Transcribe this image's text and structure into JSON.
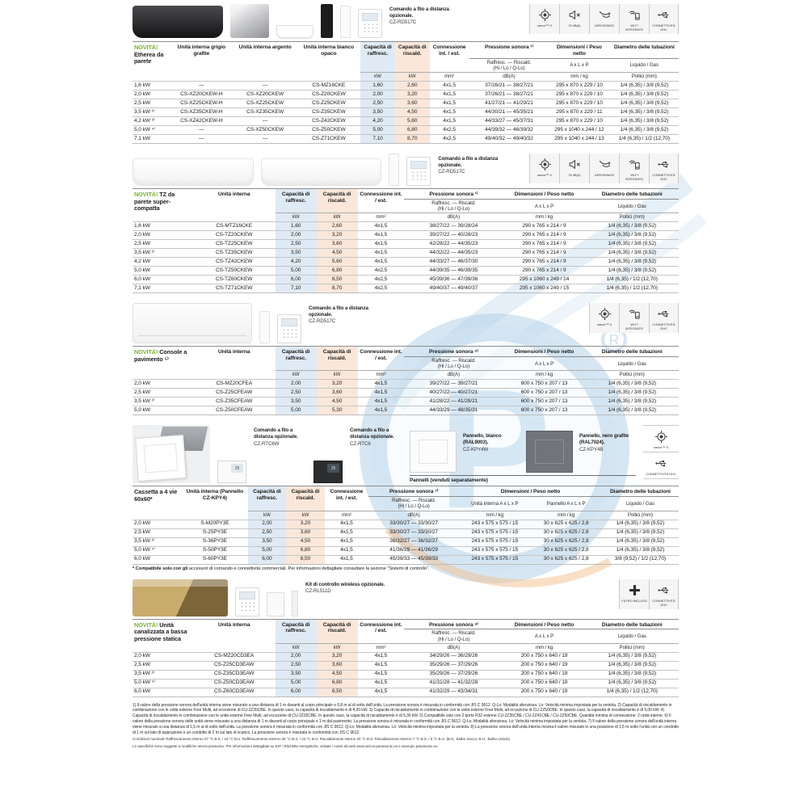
{
  "common": {
    "cool": "Capacità di raffresc.",
    "heat": "Capacità di riscald.",
    "conn": "Connessione int. / est.",
    "press_r1": "Raffresc. — Riscald.",
    "press_r2": "(Hi / Lo / Q-Lo)",
    "dim": "Dimensioni / Peso netto",
    "axlxp": "A x L x P",
    "diam": "Diametro delle tubazioni",
    "liq": "Liquido / Gas",
    "kw": "kW",
    "mm2": "mm²",
    "dba": "dB(A)",
    "mmkg": "mm / kg",
    "pollici": "Pollici (mm)"
  },
  "s1": {
    "accessory_title": "Comando a filo a distanza opzionale.",
    "accessory_model": "CZ-RD517C",
    "icons": [
      {
        "label": "nanoe™ X"
      },
      {
        "label": "23 dB(A)"
      },
      {
        "label": "AEROWINGS"
      },
      {
        "label": "WI-FI INTEGRATO"
      },
      {
        "label": "CONNETTIVITÀ DHC"
      }
    ],
    "novita": "NOVITÀ!",
    "title": "Etherea da parete",
    "col_grafite": "Unità interna grigio grafite",
    "col_argento": "Unità interna argento",
    "col_bianco": "Unità interna bianco opaco",
    "press": "Pressione sonora ¹⁾",
    "rows": [
      [
        "1,6 kW",
        "—",
        "—",
        "CS-MZ16CKE",
        "1,60",
        "2,60",
        "4x1,5",
        "37/26/21 — 38/27/21",
        "295 x 870 x 229 / 10",
        "1/4 (6,35) / 3/8 (9,52)"
      ],
      [
        "2,0 kW",
        "CS-XZ20CKEW-H",
        "CS-XZ20CKEW",
        "CS-Z20CKEW",
        "2,00",
        "3,20",
        "4x1,5",
        "37/26/21 — 38/27/21",
        "295 x 870 x 229 / 10",
        "1/4 (6,35) / 3/8 (9,52)"
      ],
      [
        "2,5 kW",
        "CS-XZ25CKEW-H",
        "CS-XZ25CKEW",
        "CS-Z25CKEW",
        "2,50",
        "3,60",
        "4x1,5",
        "41/27/21 — 41/29/21",
        "295 x 870 x 229 / 10",
        "1/4 (6,35) / 3/8 (9,52)"
      ],
      [
        "3,5 kW ²⁾",
        "CS-XZ35CKEW-H",
        "CS-XZ35CKEW",
        "CS-Z35CKEW",
        "3,50",
        "4,50",
        "4x1,5",
        "44/30/21 — 45/35/21",
        "295 x 870 x 229 / 11",
        "1/4 (6,35) / 3/8 (9,52)"
      ],
      [
        "4,2 kW ³⁾",
        "CS-XZ42CKEW-H",
        "—",
        "CS-Z42CKEW",
        "4,20",
        "5,60",
        "4x1,5",
        "44/33/27 — 45/37/31",
        "295 x 870 x 229 / 10",
        "1/4 (6,35) / 3/8 (9,52)"
      ],
      [
        "5,0 kW ⁴⁾",
        "—",
        "CS-XZ50CKEW",
        "CS-Z50CKEW",
        "5,00",
        "6,80",
        "4x2,5",
        "44/39/32 — 46/39/32",
        "295 x 1040 x 244 / 12",
        "1/4 (6,35) / 3/8 (9,52)"
      ],
      [
        "7,1 kW",
        "—",
        "—",
        "CS-Z71CKEW",
        "7,10",
        "8,70",
        "4x2,5",
        "49/40/32 — 49/40/32",
        "295 x 1040 x 244 / 13",
        "1/4 (6,35) / 1/2 (12,70)"
      ]
    ]
  },
  "s2": {
    "accessory_title": "Comando a filo a distanza opzionale.",
    "accessory_model": "CZ-RD517C",
    "icons": [
      {
        "label": "nanoe™ X"
      },
      {
        "label": "20 dB(A)"
      },
      {
        "label": "AEROWINGS"
      },
      {
        "label": "WI-FI INTEGRATO"
      },
      {
        "label": "CONNETTIVITÀ DHC"
      }
    ],
    "novita": "NOVITÀ!",
    "title": "TZ da parete super-compatta",
    "col_unit": "Unità interna",
    "press": "Pressione sonora ¹⁾",
    "rows": [
      [
        "1,6 kW",
        "CS-MTZ16CKE",
        "1,60",
        "2,60",
        "4x1,5",
        "38/27/22 — 39/28/24",
        "290 x 765 x 214 / 9",
        "1/4 (6,35) / 3/8 (9,52)"
      ],
      [
        "2,0 kW",
        "CS-TZ20CKEW",
        "2,00",
        "3,20",
        "4x1,5",
        "39/27/22 — 40/28/23",
        "290 x 765 x 214 / 9",
        "1/4 (6,35) / 3/8 (9,52)"
      ],
      [
        "2,5 kW",
        "CS-TZ25CKEW",
        "2,50",
        "3,60",
        "4x1,5",
        "42/28/22 — 44/35/23",
        "290 x 765 x 214 / 9",
        "1/4 (6,35) / 3/8 (9,52)"
      ],
      [
        "3,5 kW ²⁾",
        "CS-TZ35CKEW",
        "3,50",
        "4,50",
        "4x1,5",
        "44/32/22 — 44/35/23",
        "290 x 765 x 214 / 9",
        "1/4 (6,35) / 3/8 (9,52)"
      ],
      [
        "4,2 kW",
        "CS-TZ42CKEW",
        "4,20",
        "5,60",
        "4x1,5",
        "44/33/27 — 46/37/30",
        "290 x 765 x 214 / 9",
        "1/4 (6,35) / 3/8 (9,52)"
      ],
      [
        "5,0 kW",
        "CS-TZ50CKEW",
        "5,00",
        "6,80",
        "4x2,5",
        "44/39/35 — 46/39/35",
        "290 x 765 x 214 / 9",
        "1/4 (6,35) / 3/8 (9,52)"
      ],
      [
        "6,0 kW",
        "CS-TZ60CKEW",
        "6,00",
        "8,50",
        "4x2,5",
        "45/39/36 — 47/39/36",
        "295 x 1060 x 249 / 14",
        "1/4 (6,35) / 1/2 (12,70)"
      ],
      [
        "7,1 kW",
        "CS-TZ71CKEW",
        "7,10",
        "8,70",
        "4x2,5",
        "49/40/37 — 49/40/37",
        "295 x 1060 x 249 / 15",
        "1/4 (6,35) / 1/2 (12,70)"
      ]
    ]
  },
  "s3": {
    "accessory_title": "Comando a filo a distanza opzionale.",
    "accessory_model": "CZ-RD517C",
    "icons": [
      {
        "label": "nanoe™ X"
      },
      {
        "label": "WI-FI INTEGRATO"
      },
      {
        "label": "CONNETTIVITÀ DHC"
      }
    ],
    "novita": "NOVITÀ!",
    "title": "Console a pavimento ⁵⁾",
    "col_unit": "Unità interna",
    "press": "Pressione sonora ⁶⁾",
    "rows": [
      [
        "2,0 kW",
        "CS-MZ20CFEA",
        "2,00",
        "3,20",
        "4x1,5",
        "39/27/22 — 39/27/21",
        "600 x 750 x 207 / 13",
        "1/4 (6,35) / 3/8 (9,52)"
      ],
      [
        "2,5 kW",
        "CS-Z25CFEAW",
        "2,50",
        "3,60",
        "4x1,5",
        "40/27/22 — 40/27/21",
        "600 x 750 x 207 / 13",
        "1/4 (6,35) / 3/8 (9,52)"
      ],
      [
        "3,5 kW ²⁾",
        "CS-Z35CFEAW",
        "3,50",
        "4,50",
        "4x1,5",
        "41/28/22 — 41/28/21",
        "600 x 750 x 207 / 13",
        "1/4 (6,35) / 3/8 (9,52)"
      ],
      [
        "5,0 kW",
        "CS-Z50CFEAW",
        "5,00",
        "5,30",
        "4x1,5",
        "44/33/29 — 48/35/31",
        "600 x 750 x 207 / 13",
        "1/4 (6,35) / 3/8 (9,52)"
      ]
    ]
  },
  "s4": {
    "acc1_title": "Comando a filo a distanza opzionale.",
    "acc1_model": "CZ-RTC6W",
    "acc2_title": "Comando a filo a distanza opzionale.",
    "acc2_model": "CZ-RTC6",
    "acc3_title": "Pannello, bianco (RAL9003).",
    "acc3_model": "CZ-KPY4W",
    "acc4_title": "Pannello, nero grafite (RAL7024).",
    "acc4_model": "CZ-KPY4B",
    "panels_caption": "Pannelli (venduti separatamente)",
    "screen": "25",
    "icons": [
      {
        "label": "nanoe™ X"
      },
      {
        "label": "CONNETTIVITÀ DHC"
      }
    ],
    "novita": "",
    "title": "Cassetta a 4 vie 60x60*",
    "col_unit": "Unità interna (Pannello CZ-KPY4)",
    "press": "Pressione sonora ⁷⁾",
    "dim_int": "Unità interna A x L x P",
    "dim_pan": "Pannello A x L x P",
    "note_bold": "* Compatibile solo con gli",
    "note_rest": " accessori di comando e connettività commerciali. Per informazioni dettagliate consultare la sezione \"Sistemi di controllo\".",
    "rows": [
      [
        "2,0 kW",
        "S-M20PY3E",
        "2,00",
        "3,20",
        "4x1,5",
        "33/30/27 — 33/30/27",
        "243 x 575 x 575 / 15",
        "30 x 625 x 625 / 2,8",
        "1/4 (6,35) / 3/8 (9,52)"
      ],
      [
        "2,5 kW",
        "S-25PY3E",
        "2,50",
        "3,60",
        "4x1,5",
        "33/30/27 — 33/30/27",
        "243 x 575 x 575 / 15",
        "30 x 625 x 625 / 2,8",
        "1/4 (6,35) / 3/8 (9,52)"
      ],
      [
        "3,5 kW ²⁾",
        "S-36PY3E",
        "3,50",
        "4,50",
        "4x1,5",
        "36/32/27 — 36/32/27",
        "243 x 575 x 575 / 15",
        "30 x 625 x 625 / 2,8",
        "1/4 (6,35) / 3/8 (9,52)"
      ],
      [
        "5,0 kW ⁴⁾",
        "S-50PY3E",
        "5,00",
        "6,80",
        "4x1,5",
        "41/36/29 — 41/36/29",
        "243 x 575 x 575 / 15",
        "30 x 625 x 625 / 2,8",
        "1/4 (6,35) / 3/8 (9,52)"
      ],
      [
        "6,0 kW",
        "S-60PY3E",
        "6,00",
        "8,50",
        "4x1,5",
        "45/39/33 — 45/39/33",
        "243 x 575 x 575 / 15",
        "30 x 625 x 625 / 2,8",
        "3/8 (9,52) / 1/2 (12,70)"
      ]
    ]
  },
  "s5": {
    "accessory_title": "Kit di controllo wireless opzionale.",
    "accessory_model": "CZ-RL511D",
    "icons": [
      {
        "label": "FILTRO INCLUSO"
      },
      {
        "label": "CONNETTIVITÀ DHC"
      }
    ],
    "novita": "NOVITÀ!",
    "title": "Unità canalizzata a bassa pressione statica",
    "col_unit": "Unità interna",
    "press": "Pressione sonora ⁸⁾",
    "rows": [
      [
        "2,0 kW",
        "CS-MZ20CD3EA",
        "2,00",
        "3,20",
        "4x1,5",
        "34/29/26 — 36/29/26",
        "200 x 750 x 640 / 19",
        "1/4 (6,35) / 3/8 (9,52)"
      ],
      [
        "2,5 kW",
        "CS-Z25CD3EAW",
        "2,50",
        "3,60",
        "4x1,5",
        "35/29/26 — 37/29/26",
        "200 x 750 x 640 / 19",
        "1/4 (6,35) / 3/8 (9,52)"
      ],
      [
        "3,5 kW ²⁾",
        "CS-Z35CD3EAW",
        "3,50",
        "4,50",
        "4x1,5",
        "35/29/26 — 37/29/26",
        "200 x 750 x 640 / 19",
        "1/4 (6,35) / 3/8 (9,52)"
      ],
      [
        "5,0 kW ⁴⁾",
        "CS-Z50CD3EAW",
        "5,00",
        "6,80",
        "4x1,5",
        "41/31/28 — 41/32/28",
        "200 x 750 x 640 / 19",
        "1/4 (6,35) / 3/8 (9,52)"
      ],
      [
        "6,0 kW",
        "CS-Z60CD3EAW",
        "6,00",
        "8,50",
        "4x1,5",
        "41/32/29 — 43/34/31",
        "200 x 750 x 640 / 19",
        "1/4 (6,35) / 1/2 (12,70)"
      ]
    ]
  },
  "footnotes": {
    "main": "1) Il valore della pressione sonora dell'unità interna viene misurato a una distanza di 1 m davanti al corpo principale e 0,8 m al di sotto dell'unità. La pressione sonora è misurata in conformità con JIS C 9612. Q-Lo: Modalità silenziosa. Lo: Velocità minima impostata per la ventola. 2) Capacità di riscaldamento in combinazione con le unità esterne Free Multi, ad eccezione di CU-2Z35CBE. In questo caso, la capacità di riscaldamento è di 4,20 kW. 3) Capacità di riscaldamento in combinazione con le unità esterne Free Multi, ad eccezione di CU-2Z50CBE. In questo caso, la capacità di riscaldamento è di 5,00 kW. 4) Capacità di riscaldamento in combinazione con le unità esterne Free Multi, ad eccezione di CU-2Z35CBE. In questo caso, la capacità di riscaldamento è di 5,30 kW. 5) Compatibile solo con 2 porte R32 esterne CU-2Z35CBE / CU-2Z41CBE / CU-2Z50CBE. Quantità minima di connessione: 2 unità interne. 6) Il valore della pressione sonora delle unità viene misurato a una distanza di 1 m davanti al corpo principale e 1 m dal pavimento. La pressione sonora è misurata in conformità con JIS C 9612. Q-Lo: Modalità silenziosa. Lo: Velocità minima impostata per la ventola. 7) Il valore della pressione sonora dell'unità interna viene misurato a una distanza di 1,5 m al di sotto dell'unità. La pressione sonora è misurata in conformità con JIS C 9612. Q-Lo: Modalità silenziosa. Lo: Velocità minima impostata per la ventola. 8) La pressione sonora dell'unità interna mostra il valore misurato in una posizione di 1,5 m sotto l'unità con un condotto di 1 m sul lato di aspirazione e un condotto di 2 m sul lato di scarico. La pressione sonora è misurata in conformità con JIS C 9612.",
    "conditions": "Condizioni nominali: Raffrescamento interno 27 °C B.S. / 19 °C B.U. Raffrescamento esterno 35 °C B.S. / 24 °C B.U. Riscaldamento interno 20 °C B.S. Riscaldamento esterno 7 °C B.S. / 6 °C B.U. (B.S.: Bulbo Secco; B.U.: Bulbo Umido).",
    "disclaimer": "Le specifiche sono soggette a modifiche senza preavviso. Per informazioni dettagliate su ErP / Etichette energetiche, visitate i nostri siti web www.aircon.panasonic.eu e www.pic.panasonic.eu."
  }
}
